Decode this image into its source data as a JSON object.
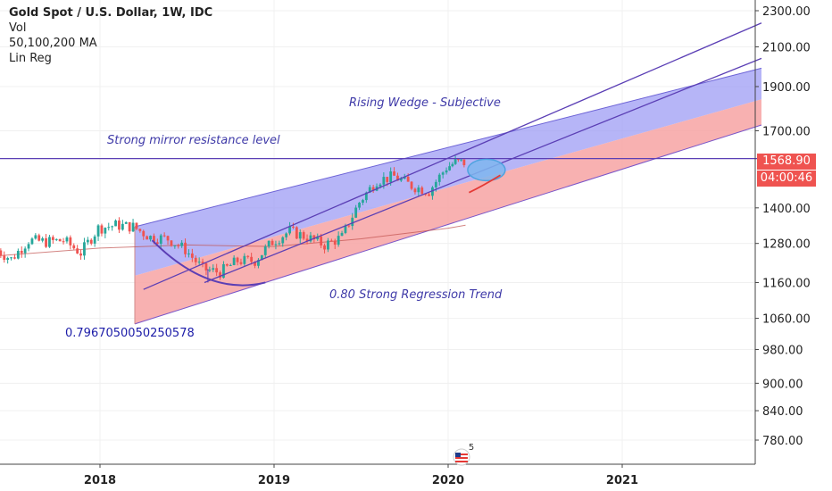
{
  "header": {
    "title": "Gold Spot / U.S. Dollar, 1W, IDC",
    "indicators": [
      "Vol",
      "50,100,200 MA",
      "Lin Reg"
    ]
  },
  "annotations": {
    "wedge_label": "Rising Wedge - Subjective",
    "resistance_label": "Strong mirror resistance level",
    "regression_label": "0.80 Strong Regression Trend",
    "regression_value": "0.7967050050250578"
  },
  "price_badges": {
    "last_price": "1568.90",
    "countdown": "04:00:46"
  },
  "badge": {
    "count": "5"
  },
  "colors": {
    "candle_up": "#26a69a",
    "candle_down": "#ef5350",
    "channel_upper_fill": "#9e9cf4",
    "channel_lower_fill": "#f7a3a3",
    "trend_line": "#5b3fb5",
    "last_price_badge": "#ef5350",
    "countdown_badge": "#ef5350",
    "ellipse": "#4fa3e0"
  },
  "chart_data": {
    "type": "candlestick",
    "instrument": "Gold Spot / U.S. Dollar",
    "timeframe": "1W",
    "y_scale": "log",
    "ylim": [
      740,
      2380
    ],
    "y_ticks": [
      2300,
      2100,
      1900,
      1700,
      1568.9,
      1400,
      1280,
      1160,
      1060,
      980,
      900,
      840,
      780
    ],
    "y_tick_labels": [
      "2300.00",
      "2100.00",
      "1900.00",
      "1700.00",
      "1568.90",
      "1400.00",
      "1280.00",
      "1160.00",
      "1060.00",
      "980.00",
      "900.00",
      "840.00",
      "780.00"
    ],
    "x_ticks": [
      "2018",
      "2019",
      "2020",
      "2021"
    ],
    "price_series": {
      "x": [
        2017.4,
        2017.5,
        2017.6,
        2017.7,
        2017.8,
        2017.9,
        2018.0,
        2018.1,
        2018.2,
        2018.3,
        2018.4,
        2018.5,
        2018.6,
        2018.7,
        2018.8,
        2018.9,
        2019.0,
        2019.1,
        2019.2,
        2019.3,
        2019.4,
        2019.5,
        2019.6,
        2019.7,
        2019.8,
        2019.9,
        2020.0,
        2020.05,
        2020.1
      ],
      "y": [
        1265,
        1230,
        1290,
        1285,
        1290,
        1250,
        1330,
        1340,
        1335,
        1300,
        1295,
        1260,
        1200,
        1190,
        1225,
        1225,
        1285,
        1320,
        1300,
        1275,
        1300,
        1420,
        1500,
        1515,
        1480,
        1460,
        1550,
        1570,
        1568.9
      ]
    },
    "moving_average_200": {
      "x": [
        2017.4,
        2018.0,
        2018.5,
        2019.0,
        2019.5,
        2020.0,
        2020.1
      ],
      "y": [
        1240,
        1265,
        1275,
        1270,
        1295,
        1330,
        1340
      ]
    },
    "regression_channel": {
      "x": [
        2018.2,
        2021.8
      ],
      "upper": [
        1335,
        1990
      ],
      "mid": [
        1180,
        1840
      ],
      "lower": [
        1045,
        1725
      ],
      "r": 0.7967050050250578
    },
    "trend_lines": [
      {
        "name": "rising wedge upper",
        "x": [
          2018.25,
          2021.8
        ],
        "y": [
          1140,
          2230
        ]
      },
      {
        "name": "rising wedge lower",
        "x": [
          2018.6,
          2021.8
        ],
        "y": [
          1160,
          2040
        ]
      },
      {
        "name": "resistance",
        "x": [
          2017.4,
          2021.8
        ],
        "y": [
          1585,
          1585
        ]
      }
    ],
    "last_price": 1568.9
  }
}
